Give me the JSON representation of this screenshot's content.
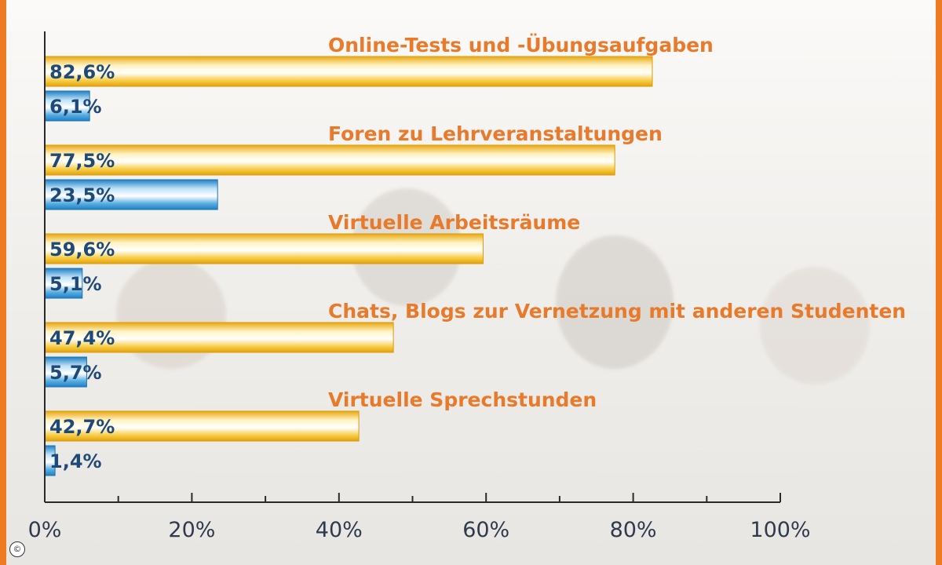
{
  "chart_data": {
    "type": "bar",
    "orientation": "horizontal",
    "categories": [
      "Online-Tests und -Übungsaufgaben",
      "Foren zu Lehrveranstaltungen",
      "Virtuelle Arbeitsräume",
      "Chats, Blogs zur Vernetzung mit anderen Studenten",
      "Virtuelle Sprechstunden"
    ],
    "series": [
      {
        "color": "#f5c02c",
        "values": [
          82.6,
          77.5,
          59.6,
          47.4,
          42.7
        ],
        "labels": [
          "82,6%",
          "77,5%",
          "59,6%",
          "47,4%",
          "42,7%"
        ]
      },
      {
        "color": "#3f9ad6",
        "values": [
          6.1,
          23.5,
          5.1,
          5.7,
          1.4
        ],
        "labels": [
          "6,1%",
          "23,5%",
          "5,1%",
          "5,7%",
          "1,4%"
        ]
      }
    ],
    "xlim": [
      0,
      100
    ],
    "x_ticks": [
      "0%",
      "20%",
      "40%",
      "60%",
      "80%",
      "100%"
    ],
    "grid": false,
    "legend": "none"
  },
  "copyright": "©"
}
